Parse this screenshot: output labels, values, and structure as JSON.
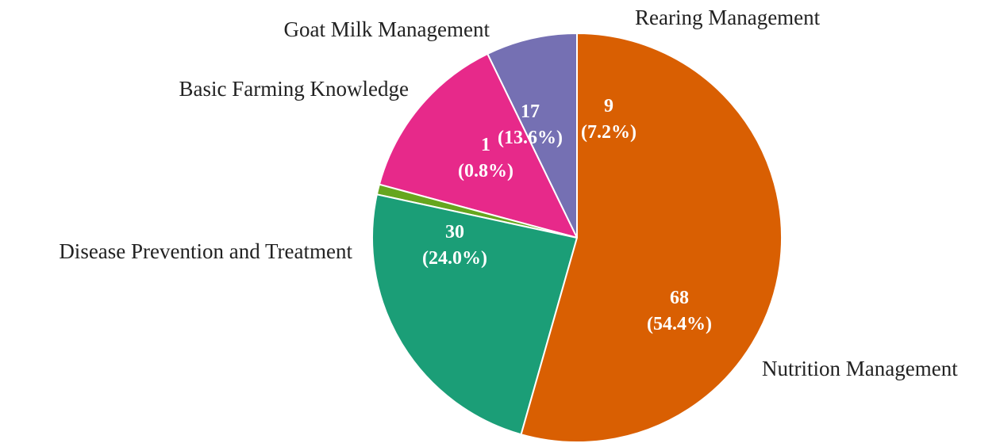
{
  "chart_data": {
    "type": "pie",
    "title": "",
    "start_angle_deg": 90,
    "direction": "counterclockwise",
    "labels": [
      "Rearing Management",
      "Goat Milk Management",
      "Basic Farming Knowledge",
      "Disease Prevention and Treatment",
      "Nutrition Management"
    ],
    "values": [
      9,
      17,
      1,
      30,
      68
    ],
    "value_labels": [
      "9",
      "17",
      "1",
      "30",
      "68"
    ],
    "percent_labels": [
      "(7.2%)",
      "(13.6%)",
      "(0.8%)",
      "(24.0%)",
      "(54.4%)"
    ],
    "colors": [
      "#7570b3",
      "#e7298a",
      "#66a61e",
      "#1b9e77",
      "#d95f02"
    ],
    "legend": "none"
  }
}
